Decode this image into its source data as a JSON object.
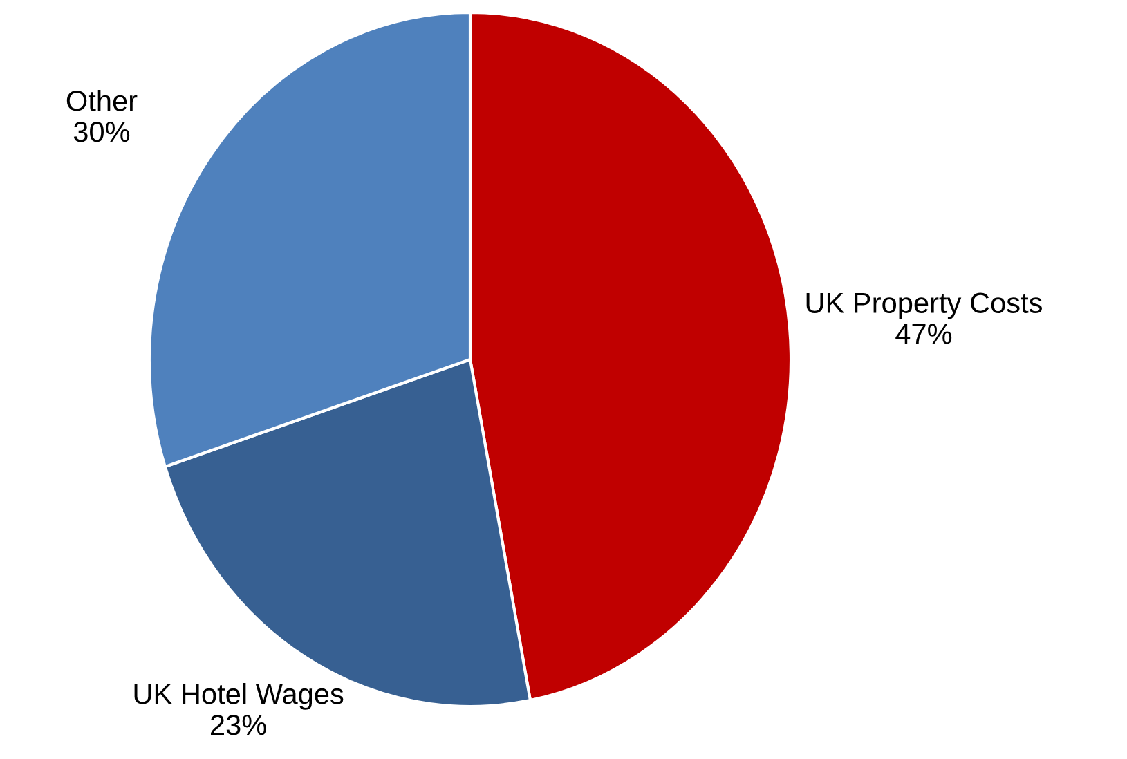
{
  "chart_data": {
    "type": "pie",
    "categories": [
      "UK Property Costs",
      "UK Hotel Wages",
      "Other"
    ],
    "values": [
      47,
      23,
      30
    ],
    "value_labels": [
      "47%",
      "23%",
      "30%"
    ],
    "colors": [
      "#c00000",
      "#376092",
      "#4f81bd"
    ],
    "legend": false
  }
}
